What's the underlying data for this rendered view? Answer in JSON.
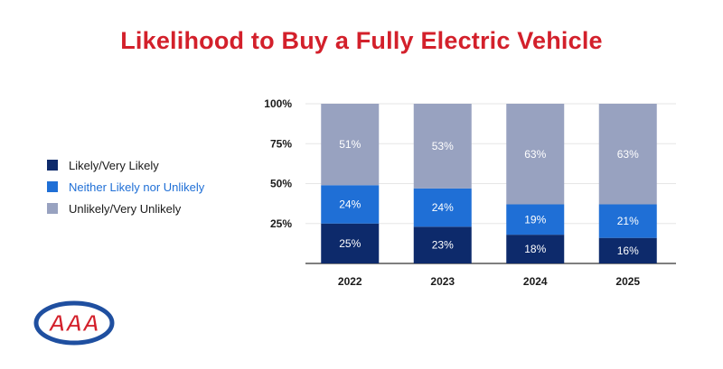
{
  "title": "Likelihood to Buy a Fully Electric Vehicle",
  "legend": {
    "items": [
      {
        "label": "Likely/Very Likely",
        "color": "#0d2a6b"
      },
      {
        "label": "Neither Likely nor Unlikely",
        "color": "#1f6fd6"
      },
      {
        "label": "Unlikely/Very Unlikely",
        "color": "#98a2c0"
      }
    ]
  },
  "logo": {
    "text": "AAA",
    "color": "#d3202b",
    "ring_color": "#1f4fa0"
  },
  "chart_data": {
    "type": "bar",
    "stacked": true,
    "title": "Likelihood to Buy a Fully Electric Vehicle",
    "categories": [
      "2022",
      "2023",
      "2024",
      "2025"
    ],
    "series": [
      {
        "name": "Likely/Very Likely",
        "values": [
          25,
          23,
          18,
          16
        ],
        "labels": [
          "25%",
          "23%",
          "18%",
          "16%"
        ],
        "color": "#0d2a6b"
      },
      {
        "name": "Neither Likely nor Unlikely",
        "values": [
          24,
          24,
          19,
          21
        ],
        "labels": [
          "24%",
          "24%",
          "19%",
          "21%"
        ],
        "color": "#1f6fd6"
      },
      {
        "name": "Unlikely/Very Unlikely",
        "values": [
          51,
          53,
          63,
          63
        ],
        "labels": [
          "51%",
          "53%",
          "63%",
          "63%"
        ],
        "color": "#98a2c0"
      }
    ],
    "yticks": [
      "25%",
      "50%",
      "75%",
      "100%"
    ],
    "ytick_values": [
      25,
      50,
      75,
      100
    ],
    "ylim": [
      0,
      100
    ],
    "xlabel": "",
    "ylabel": "",
    "grid": true,
    "legend_position": "left"
  }
}
